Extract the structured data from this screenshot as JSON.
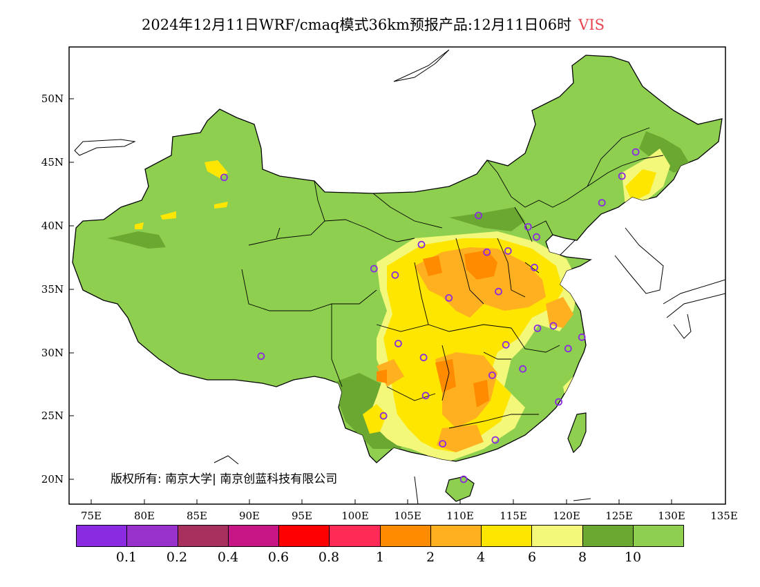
{
  "title": {
    "main": "2024年12月11日WRF/cmaq模式36km预报产品:12月11日06时",
    "variable": "VIS"
  },
  "axes": {
    "lat_ticks": [
      "50N",
      "45N",
      "40N",
      "35N",
      "30N",
      "25N",
      "20N"
    ],
    "lon_ticks": [
      "75E",
      "80E",
      "85E",
      "90E",
      "95E",
      "100E",
      "105E",
      "110E",
      "115E",
      "120E",
      "125E",
      "130E",
      "135E"
    ]
  },
  "copyright": "版权所有: 南京大学| 南京创蓝科技有限公司",
  "legend": {
    "colors": [
      "#8a2be2",
      "#9932cc",
      "#a8305f",
      "#c71585",
      "#ff0000",
      "#ff2a55",
      "#ff8c00",
      "#ffb020",
      "#ffe600",
      "#f3f77a",
      "#6aa832",
      "#8fcf4f"
    ],
    "labels": [
      "0.1",
      "0.2",
      "0.4",
      "0.6",
      "0.8",
      "1",
      "2",
      "4",
      "6",
      "8",
      "10"
    ]
  },
  "colors": {
    "base_land": "#8fcf4f",
    "dark_green": "#6aa832",
    "light_yellow": "#f3f77a",
    "yellow": "#ffe600",
    "orange": "#ffb020",
    "dark_orange": "#ff8c00",
    "station": "#8a2be2",
    "title_accent": "#e8434f"
  },
  "stations": [
    {
      "lon": 87.6,
      "lat": 43.8
    },
    {
      "lon": 91.1,
      "lat": 29.7
    },
    {
      "lon": 101.8,
      "lat": 36.6
    },
    {
      "lon": 103.8,
      "lat": 36.1
    },
    {
      "lon": 106.3,
      "lat": 38.5
    },
    {
      "lon": 111.7,
      "lat": 40.8
    },
    {
      "lon": 112.5,
      "lat": 37.9
    },
    {
      "lon": 114.5,
      "lat": 38.0
    },
    {
      "lon": 116.4,
      "lat": 39.9
    },
    {
      "lon": 117.2,
      "lat": 39.1
    },
    {
      "lon": 117.0,
      "lat": 36.7
    },
    {
      "lon": 113.6,
      "lat": 34.8
    },
    {
      "lon": 108.9,
      "lat": 34.3
    },
    {
      "lon": 104.1,
      "lat": 30.7
    },
    {
      "lon": 106.5,
      "lat": 29.6
    },
    {
      "lon": 114.3,
      "lat": 30.6
    },
    {
      "lon": 117.3,
      "lat": 31.9
    },
    {
      "lon": 118.8,
      "lat": 32.1
    },
    {
      "lon": 121.5,
      "lat": 31.2
    },
    {
      "lon": 120.2,
      "lat": 30.3
    },
    {
      "lon": 115.9,
      "lat": 28.7
    },
    {
      "lon": 113.0,
      "lat": 28.2
    },
    {
      "lon": 106.7,
      "lat": 26.6
    },
    {
      "lon": 102.7,
      "lat": 25.0
    },
    {
      "lon": 119.3,
      "lat": 26.1
    },
    {
      "lon": 113.3,
      "lat": 23.1
    },
    {
      "lon": 108.3,
      "lat": 22.8
    },
    {
      "lon": 110.3,
      "lat": 20.0
    },
    {
      "lon": 123.4,
      "lat": 41.8
    },
    {
      "lon": 125.3,
      "lat": 43.9
    },
    {
      "lon": 126.6,
      "lat": 45.8
    }
  ]
}
